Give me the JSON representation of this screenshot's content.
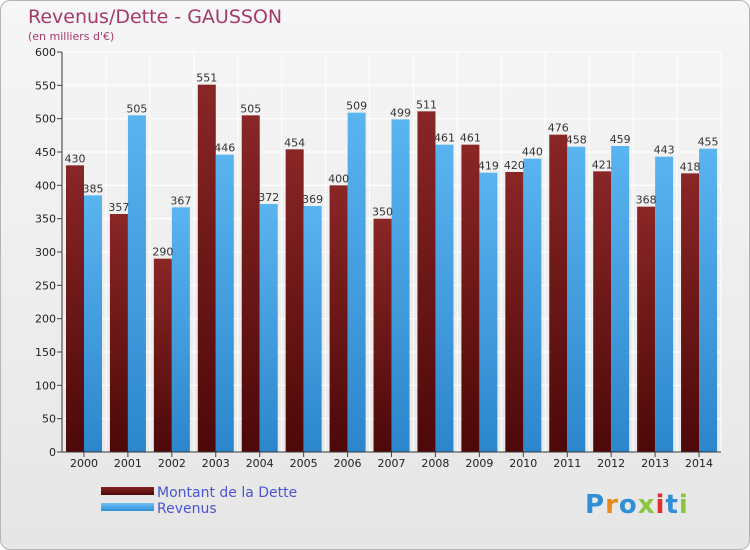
{
  "title": "Revenus/Dette - GAUSSON",
  "subtitle": "(en milliers d'€)",
  "colors": {
    "dette": "#6b1414",
    "revenus": "#3e9fe0",
    "title": "#a33a6a"
  },
  "logo": {
    "text": "Proxiti"
  },
  "legend": [
    {
      "label": "Montant de la Dette",
      "color": "#6b1414"
    },
    {
      "label": "Revenus",
      "color": "#3e9fe0"
    }
  ],
  "chart_data": {
    "type": "bar",
    "title": "Revenus/Dette - GAUSSON",
    "subtitle": "(en milliers d'€)",
    "categories": [
      "2000",
      "2001",
      "2002",
      "2003",
      "2004",
      "2005",
      "2006",
      "2007",
      "2008",
      "2009",
      "2010",
      "2011",
      "2012",
      "2013",
      "2014"
    ],
    "series": [
      {
        "name": "Montant de la Dette",
        "values": [
          430,
          357,
          290,
          551,
          505,
          454,
          400,
          350,
          511,
          461,
          420,
          476,
          421,
          368,
          418
        ],
        "value_labels": [
          "430",
          "357",
          "290",
          "551",
          "505",
          "454",
          "400",
          "350",
          "511",
          "461",
          "420",
          "476",
          "421",
          "368",
          "418"
        ]
      },
      {
        "name": "Revenus",
        "values": [
          385,
          505,
          367,
          446,
          372,
          369,
          509,
          499,
          461,
          419,
          440,
          458,
          459,
          443,
          455
        ],
        "value_labels": [
          "385",
          "505",
          "367",
          "446",
          "372",
          "369",
          "509",
          "499",
          "461",
          "419",
          "440",
          "458",
          "459",
          "443",
          "455"
        ]
      }
    ],
    "ylim": [
      0,
      600
    ],
    "yticks": [
      0,
      50,
      100,
      150,
      200,
      250,
      300,
      350,
      400,
      450,
      500,
      550,
      600
    ],
    "grid": true,
    "legend_position": "bottom-left"
  }
}
